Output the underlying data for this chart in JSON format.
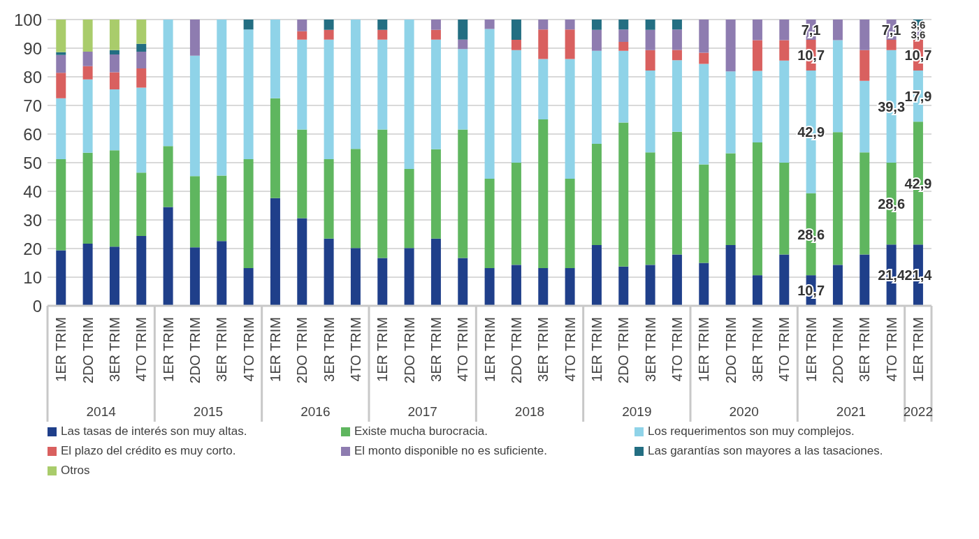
{
  "chart_data": {
    "type": "bar",
    "stacked": true,
    "categories": [
      "1ER TRIM",
      "2DO TRIM",
      "3ER TRIM",
      "4TO TRIM",
      "1ER TRIM",
      "2DO TRIM",
      "3ER TRIM",
      "4TO TRIM",
      "1ER TRIM",
      "2DO TRIM",
      "3ER TRIM",
      "4TO TRIM",
      "1ER TRIM",
      "2DO TRIM",
      "3ER TRIM",
      "4TO TRIM",
      "1ER TRIM",
      "2DO TRIM",
      "3ER TRIM",
      "4TO TRIM",
      "1ER TRIM",
      "2DO TRIM",
      "3ER TRIM",
      "4TO TRIM",
      "1ER TRIM",
      "2DO TRIM",
      "3ER TRIM",
      "4TO TRIM",
      "1ER TRIM",
      "2DO TRIM",
      "3ER TRIM",
      "4TO TRIM",
      "1ER TRIM"
    ],
    "annotations": [
      "2014",
      "2015",
      "2016",
      "2017",
      "2018",
      "2019",
      "2020",
      "2021",
      "2022"
    ],
    "series": [
      {
        "name": "Las tasas de interés son muy altas.",
        "color": "#1f3f8a",
        "values": [
          19.4,
          21.7,
          20.7,
          24.4,
          34.5,
          20.4,
          22.6,
          13.2,
          37.6,
          30.6,
          23.5,
          20.2,
          16.7,
          20.2,
          23.5,
          16.7,
          13.2,
          14.3,
          13.2,
          13.2,
          21.2,
          13.7,
          14.3,
          17.9,
          15.0,
          21.2,
          10.7,
          17.9,
          10.7,
          14.3,
          17.9,
          21.4,
          21.4
        ],
        "value_labels": [
          null,
          null,
          null,
          null,
          null,
          null,
          null,
          null,
          null,
          null,
          null,
          null,
          null,
          null,
          null,
          null,
          null,
          null,
          null,
          null,
          null,
          null,
          null,
          null,
          null,
          null,
          null,
          null,
          "10,7",
          null,
          null,
          "21,4",
          "21,4"
        ]
      },
      {
        "name": "Existe mucha burocracia.",
        "color": "#5fb65f",
        "values": [
          31.8,
          31.8,
          33.6,
          22.1,
          21.3,
          24.9,
          22.9,
          38.0,
          34.9,
          31.0,
          27.7,
          34.6,
          44.9,
          27.6,
          31.2,
          44.9,
          31.2,
          35.7,
          51.9,
          31.2,
          35.4,
          50.3,
          39.3,
          42.9,
          34.4,
          32.1,
          46.4,
          32.1,
          28.6,
          46.4,
          35.7,
          28.6,
          42.9
        ],
        "value_labels": [
          null,
          null,
          null,
          null,
          null,
          null,
          null,
          null,
          null,
          null,
          null,
          null,
          null,
          null,
          null,
          null,
          null,
          null,
          null,
          null,
          null,
          null,
          null,
          null,
          null,
          null,
          null,
          null,
          "28,6",
          null,
          null,
          "28,6",
          "42,9"
        ]
      },
      {
        "name": "Los requerimentos son muy complejos.",
        "color": "#8fd3e8",
        "values": [
          21.3,
          25.6,
          21.3,
          29.7,
          44.2,
          42.1,
          54.5,
          45.3,
          27.5,
          31.4,
          41.8,
          45.2,
          31.4,
          52.2,
          38.3,
          28.1,
          52.3,
          39.3,
          21.1,
          41.8,
          32.5,
          25.1,
          28.6,
          25.0,
          35.1,
          28.6,
          25.0,
          35.7,
          42.9,
          32.1,
          25.0,
          39.3,
          17.9
        ],
        "value_labels": [
          null,
          null,
          null,
          null,
          null,
          null,
          null,
          null,
          null,
          null,
          null,
          null,
          null,
          null,
          null,
          null,
          null,
          null,
          null,
          null,
          null,
          null,
          null,
          null,
          null,
          null,
          null,
          null,
          "42,9",
          null,
          null,
          "39,3",
          "17,9"
        ]
      },
      {
        "name": "El plazo del crédito es muy corto.",
        "color": "#d9605f",
        "values": [
          8.9,
          4.6,
          6.0,
          6.7,
          0,
          0,
          0,
          0,
          0,
          2.9,
          3.4,
          0,
          3.4,
          0,
          3.4,
          0,
          0,
          3.6,
          10.3,
          10.3,
          0,
          3.1,
          7.1,
          3.6,
          3.9,
          0,
          10.7,
          7.1,
          10.7,
          0,
          10.7,
          3.6,
          10.7
        ],
        "value_labels": [
          null,
          null,
          null,
          null,
          null,
          null,
          null,
          null,
          null,
          null,
          null,
          null,
          null,
          null,
          null,
          null,
          null,
          null,
          null,
          null,
          null,
          null,
          null,
          null,
          null,
          null,
          null,
          null,
          "10,7",
          null,
          null,
          null,
          "10,7"
        ]
      },
      {
        "name": "El monto disponible no es suficiente.",
        "color": "#8e7cb0",
        "values": [
          6.2,
          5.1,
          6.2,
          5.9,
          0,
          12.6,
          0,
          0,
          0,
          4.1,
          0,
          0,
          0,
          0,
          3.6,
          3.3,
          3.3,
          0,
          3.5,
          3.5,
          7.3,
          4.3,
          7.1,
          7.1,
          11.6,
          18.1,
          7.2,
          7.2,
          7.1,
          7.2,
          10.7,
          7.1,
          3.6
        ],
        "value_labels": [
          null,
          null,
          null,
          null,
          null,
          null,
          null,
          null,
          null,
          null,
          null,
          null,
          null,
          null,
          null,
          null,
          null,
          null,
          null,
          null,
          null,
          null,
          null,
          null,
          null,
          null,
          null,
          null,
          "7,1",
          null,
          null,
          "7,1",
          "3,6"
        ]
      },
      {
        "name": "Las garantías son mayores a las tasaciones.",
        "color": "#236e82",
        "values": [
          1.0,
          0,
          1.5,
          2.7,
          0,
          0,
          0,
          3.5,
          0,
          0,
          3.6,
          0,
          3.6,
          0,
          0,
          7.0,
          0,
          7.1,
          0,
          0,
          3.6,
          3.5,
          3.6,
          3.6,
          0,
          0,
          0,
          0,
          0,
          0,
          0,
          0,
          3.6
        ],
        "value_labels": [
          null,
          null,
          null,
          null,
          null,
          null,
          null,
          null,
          null,
          null,
          null,
          null,
          null,
          null,
          null,
          null,
          null,
          null,
          null,
          null,
          null,
          null,
          null,
          null,
          null,
          null,
          null,
          null,
          null,
          null,
          null,
          null,
          "3,6"
        ]
      },
      {
        "name": "Otros",
        "color": "#a9cc6b",
        "values": [
          11.4,
          11.2,
          10.7,
          8.5,
          0,
          0,
          0,
          0,
          0,
          0,
          0,
          0,
          0,
          0,
          0,
          0,
          0,
          0,
          0,
          0,
          0,
          0,
          0,
          0,
          0,
          0,
          0,
          0,
          0,
          0,
          0,
          0,
          0
        ]
      }
    ],
    "ylim": [
      0,
      100
    ],
    "yticks": [
      0,
      10,
      20,
      30,
      40,
      50,
      60,
      70,
      80,
      90,
      100
    ],
    "grid": "y",
    "legend": "bottom"
  }
}
